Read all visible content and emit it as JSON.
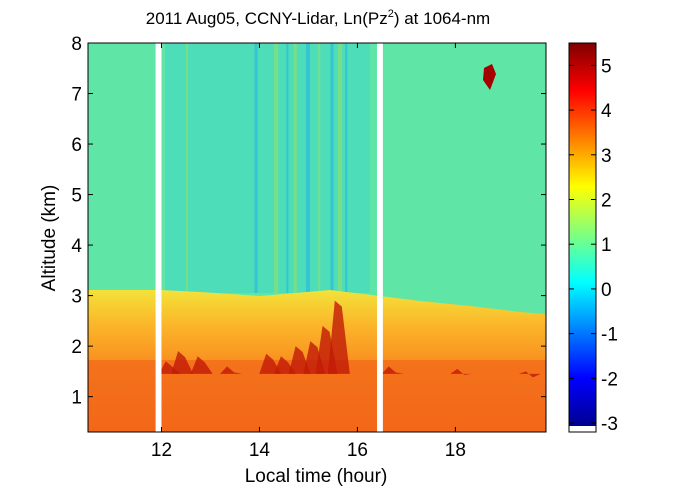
{
  "chart_data": {
    "type": "heatmap",
    "title_parts": {
      "main": "2011 Aug05, CCNY-Lidar, Ln(Pz",
      "sup": "2",
      "tail": ") at 1064-nm"
    },
    "xlabel": "Local time (hour)",
    "ylabel": "Altitude (km)",
    "xlim": [
      10.5,
      19.85
    ],
    "ylim": [
      0.3,
      8
    ],
    "xticks": [
      12,
      14,
      16,
      18
    ],
    "yticks": [
      1,
      2,
      3,
      4,
      5,
      6,
      7,
      8
    ],
    "colorbar": {
      "range": [
        -3.2,
        5.5
      ],
      "ticks": [
        -3,
        -2,
        -1,
        0,
        1,
        2,
        3,
        4,
        5
      ],
      "colormap": "jet"
    },
    "data_gaps_hours": [
      [
        11.88,
        12.0
      ],
      [
        16.4,
        16.52
      ]
    ],
    "layers": [
      {
        "name": "boundary layer top",
        "x_range": [
          10.5,
          19.85
        ],
        "altitude_km_top": [
          3.1,
          2.6
        ]
      },
      {
        "name": "cloud",
        "time_hour": 18.6,
        "altitude_km": 7.25
      }
    ]
  }
}
